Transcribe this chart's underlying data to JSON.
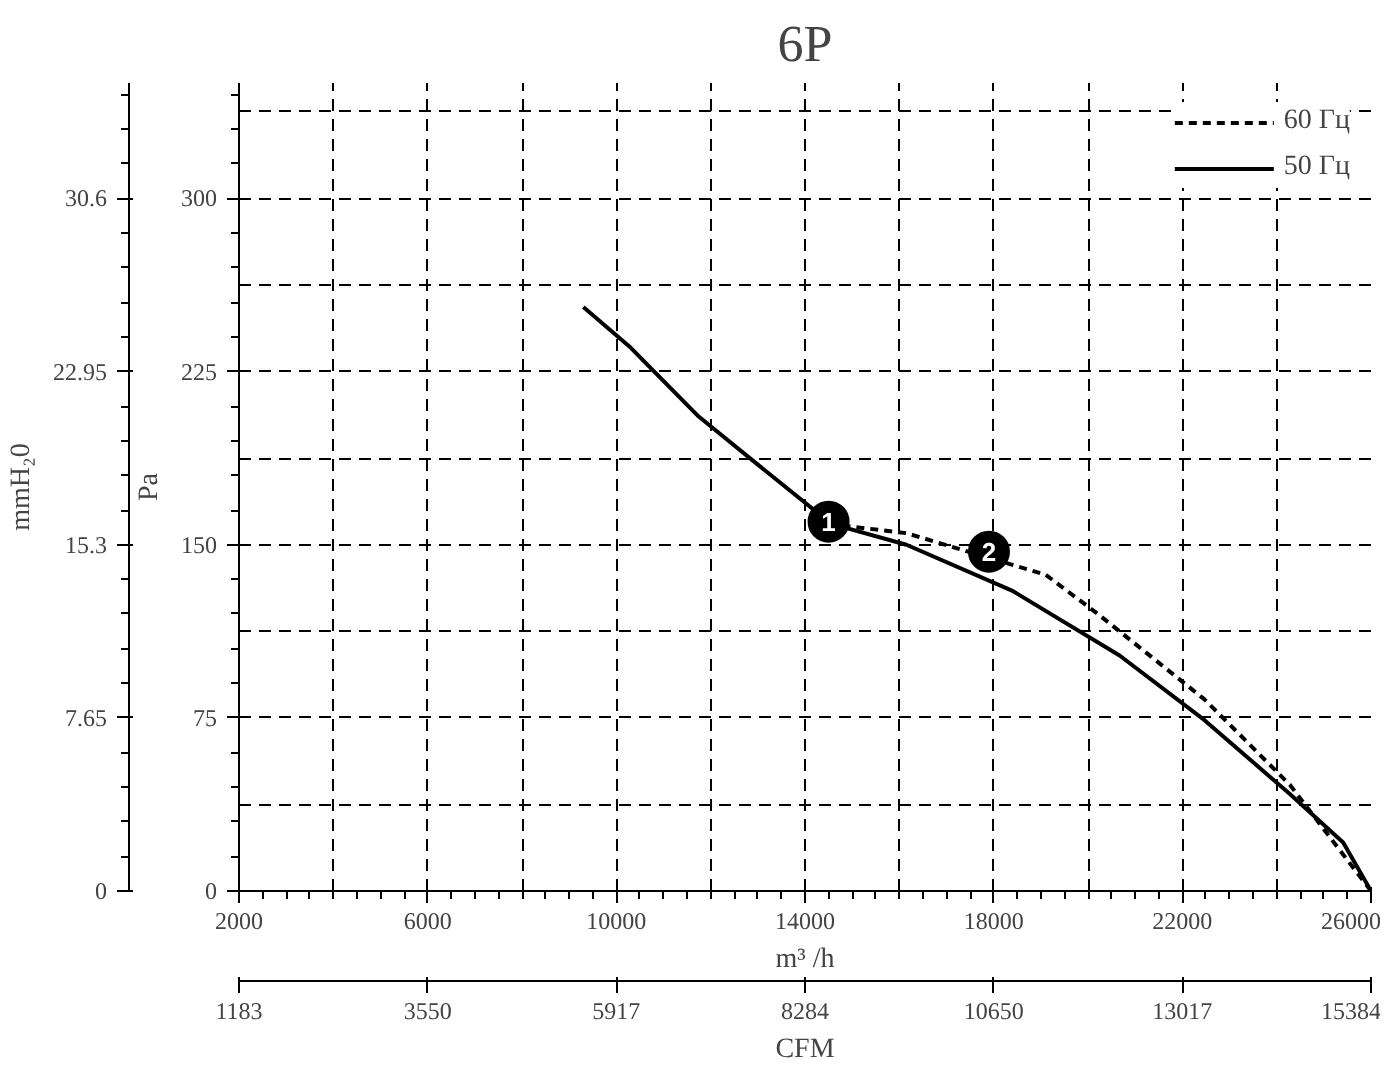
{
  "chart_data": {
    "type": "line",
    "title": "6P",
    "xlabel": "m³ /h",
    "x2label": "CFM",
    "ylabel": "Pa",
    "y2label": "mmH₂0",
    "xlim": [
      2000,
      26000
    ],
    "xticks": [
      2000,
      6000,
      10000,
      14000,
      18000,
      22000,
      26000
    ],
    "x2lim": [
      1183,
      15384
    ],
    "x2ticks": [
      1183,
      3550,
      5917,
      8284,
      10650,
      13017,
      15384
    ],
    "ylim": [
      0,
      350
    ],
    "yticks": [
      0,
      75,
      150,
      225,
      300
    ],
    "y2lim": [
      0,
      35.7
    ],
    "y2ticks": [
      0,
      7.65,
      15.3,
      22.95,
      30.6
    ],
    "grid": true,
    "legend": "top right",
    "series": [
      {
        "name": "60 Гц",
        "color": "#000000",
        "line_style": "dashed",
        "x": [
          14500,
          16150,
          19100,
          20210,
          22470,
          24280,
          26000
        ],
        "values": [
          159,
          155,
          137,
          120,
          83,
          46,
          0
        ]
      },
      {
        "name": "50 Гц",
        "color": "#000000",
        "line_style": "solid",
        "x": [
          9300,
          10270,
          11720,
          12980,
          14560,
          16150,
          18400,
          20670,
          22470,
          24280,
          25410,
          26000
        ],
        "values": [
          253,
          236,
          206,
          185,
          159,
          150,
          130,
          102,
          74,
          42,
          21,
          0
        ]
      }
    ],
    "annotations": [
      {
        "text": "1",
        "x": 14500,
        "y": 160
      },
      {
        "text": "2",
        "x": 17900,
        "y": 147
      }
    ]
  }
}
